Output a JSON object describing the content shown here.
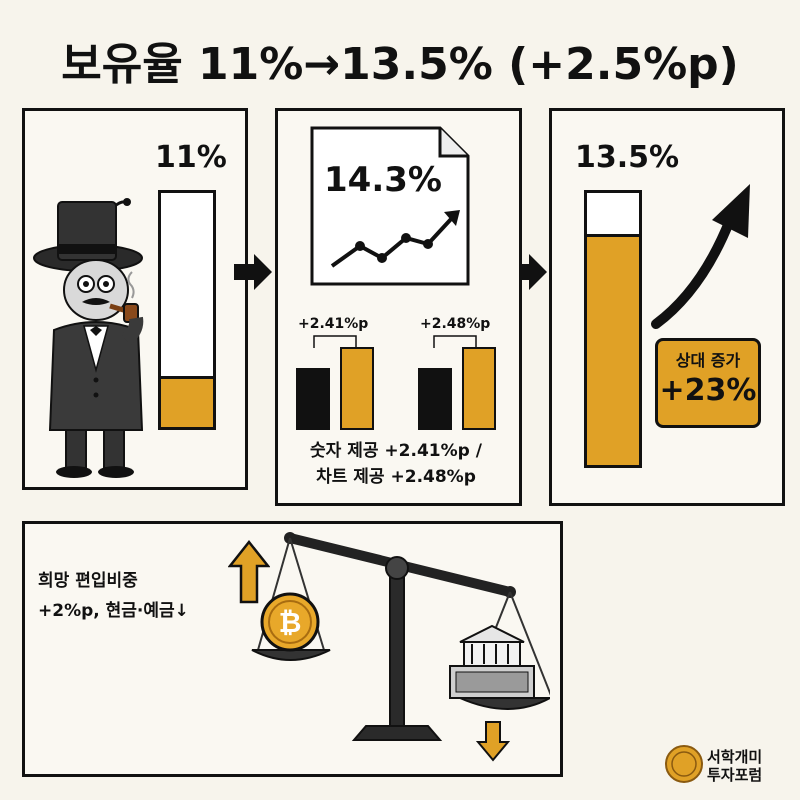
{
  "title": "보유율 11%→13.5% (+2.5%p)",
  "before": {
    "label": "11%",
    "value_pct": 11
  },
  "middle": {
    "doc_value": "14.3%",
    "groups": [
      {
        "delta_label": "+2.41%p"
      },
      {
        "delta_label": "+2.48%p"
      }
    ],
    "caption_line1": "숫자 제공 +2.41%p /",
    "caption_line2": "차트 제공 +2.48%p"
  },
  "after": {
    "label": "13.5%",
    "value_pct": 13.5
  },
  "badge": {
    "line1": "상대 증가",
    "line2": "+23%"
  },
  "note": {
    "line1": "희망 편입비중",
    "line2": "+2%p, 현금·예금↓"
  },
  "logo": {
    "line1": "서학개미",
    "line2": "투자포럼"
  },
  "colors": {
    "gold": "#e0a126",
    "ink": "#111111",
    "background": "#f7f4ec"
  }
}
